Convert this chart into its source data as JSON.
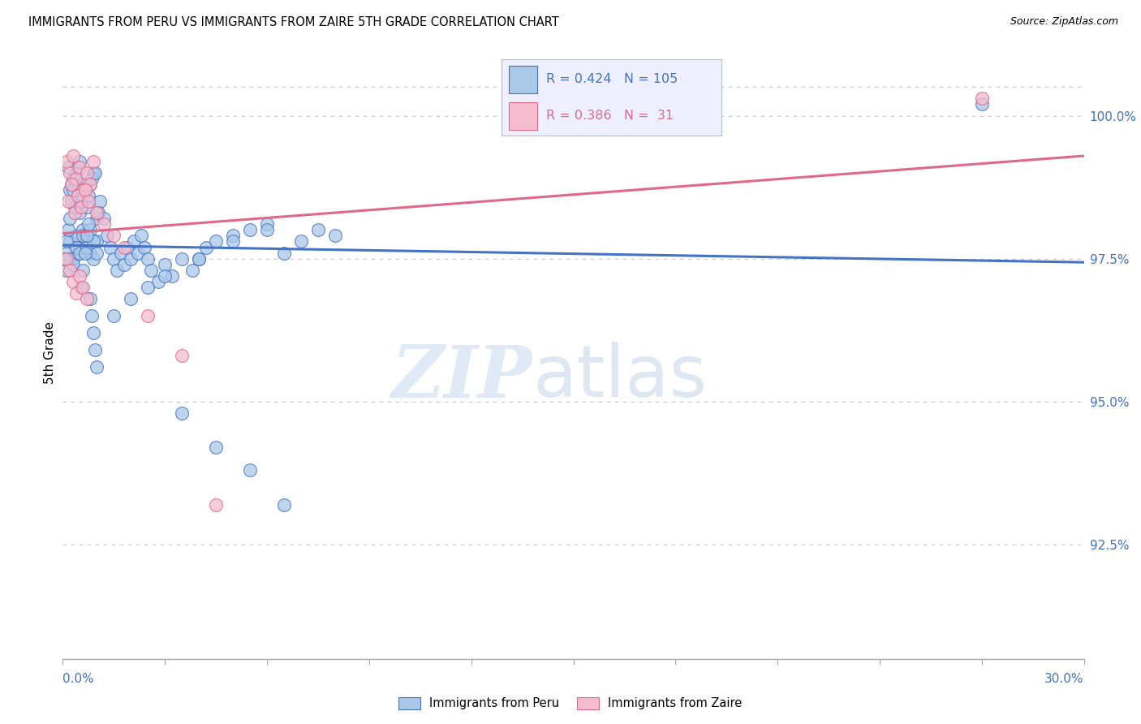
{
  "title": "IMMIGRANTS FROM PERU VS IMMIGRANTS FROM ZAIRE 5TH GRADE CORRELATION CHART",
  "source": "Source: ZipAtlas.com",
  "ylabel": "5th Grade",
  "yticks": [
    92.5,
    95.0,
    97.5,
    100.0
  ],
  "ytick_labels": [
    "92.5%",
    "95.0%",
    "97.5%",
    "100.0%"
  ],
  "xmin": 0.0,
  "xmax": 30.0,
  "ymin": 90.5,
  "ymax": 101.2,
  "peru_r": 0.424,
  "peru_n": 105,
  "zaire_r": 0.386,
  "zaire_n": 31,
  "peru_color": "#aac8e8",
  "zaire_color": "#f5bcd0",
  "peru_line_color": "#4472c4",
  "zaire_line_color": "#e06888",
  "watermark_zip_color": "#c8d8f0",
  "watermark_atlas_color": "#b0c4e0",
  "peru_x": [
    0.2,
    0.3,
    0.4,
    0.5,
    0.6,
    0.7,
    0.8,
    0.9,
    1.0,
    1.1,
    0.15,
    0.25,
    0.35,
    0.45,
    0.55,
    0.65,
    0.75,
    0.85,
    0.95,
    1.05,
    0.1,
    0.2,
    0.3,
    0.4,
    0.5,
    0.6,
    0.7,
    0.8,
    0.9,
    1.0,
    0.1,
    0.2,
    0.3,
    0.4,
    0.5,
    0.6,
    0.7,
    0.8,
    0.9,
    1.0,
    1.2,
    1.3,
    1.4,
    1.5,
    1.6,
    1.7,
    1.8,
    1.9,
    2.0,
    2.1,
    2.2,
    2.3,
    2.4,
    2.5,
    2.6,
    2.8,
    3.0,
    3.2,
    3.5,
    3.8,
    4.0,
    4.2,
    4.5,
    5.0,
    5.5,
    6.0,
    6.5,
    7.0,
    7.5,
    8.0,
    1.5,
    2.0,
    2.5,
    3.0,
    4.0,
    5.0,
    6.0,
    0.05,
    0.1,
    0.15,
    0.2,
    0.25,
    0.3,
    0.35,
    0.4,
    0.45,
    0.5,
    0.55,
    0.6,
    0.65,
    0.7,
    0.75,
    0.8,
    0.85,
    0.9,
    0.95,
    1.0,
    3.5,
    4.5,
    5.5,
    6.5,
    27.0
  ],
  "peru_y": [
    98.7,
    98.9,
    98.5,
    98.3,
    98.6,
    98.4,
    98.8,
    99.0,
    98.2,
    98.5,
    99.1,
    98.8,
    98.4,
    98.7,
    98.5,
    98.8,
    98.6,
    98.9,
    99.0,
    98.3,
    97.6,
    97.8,
    97.5,
    97.9,
    97.7,
    98.0,
    97.8,
    97.6,
    97.5,
    97.8,
    97.3,
    97.5,
    97.4,
    97.7,
    97.6,
    97.9,
    97.7,
    98.0,
    97.8,
    97.6,
    98.2,
    97.9,
    97.7,
    97.5,
    97.3,
    97.6,
    97.4,
    97.7,
    97.5,
    97.8,
    97.6,
    97.9,
    97.7,
    97.5,
    97.3,
    97.1,
    97.4,
    97.2,
    97.5,
    97.3,
    97.5,
    97.7,
    97.8,
    97.9,
    98.0,
    98.1,
    97.6,
    97.8,
    98.0,
    97.9,
    96.5,
    96.8,
    97.0,
    97.2,
    97.5,
    97.8,
    98.0,
    97.5,
    97.8,
    98.0,
    98.2,
    98.5,
    98.7,
    98.9,
    99.0,
    99.1,
    99.2,
    97.0,
    97.3,
    97.6,
    97.9,
    98.1,
    96.8,
    96.5,
    96.2,
    95.9,
    95.6,
    94.8,
    94.2,
    93.8,
    93.2,
    100.2
  ],
  "zaire_x": [
    0.1,
    0.2,
    0.3,
    0.4,
    0.5,
    0.6,
    0.7,
    0.8,
    0.9,
    0.15,
    0.25,
    0.35,
    0.45,
    0.55,
    0.65,
    0.75,
    1.0,
    1.2,
    1.5,
    1.8,
    0.1,
    0.2,
    0.3,
    0.4,
    0.5,
    0.6,
    0.7,
    2.5,
    3.5,
    4.5,
    27.0
  ],
  "zaire_y": [
    99.2,
    99.0,
    99.3,
    98.9,
    99.1,
    98.7,
    99.0,
    98.8,
    99.2,
    98.5,
    98.8,
    98.3,
    98.6,
    98.4,
    98.7,
    98.5,
    98.3,
    98.1,
    97.9,
    97.7,
    97.5,
    97.3,
    97.1,
    96.9,
    97.2,
    97.0,
    96.8,
    96.5,
    95.8,
    93.2,
    100.3
  ]
}
